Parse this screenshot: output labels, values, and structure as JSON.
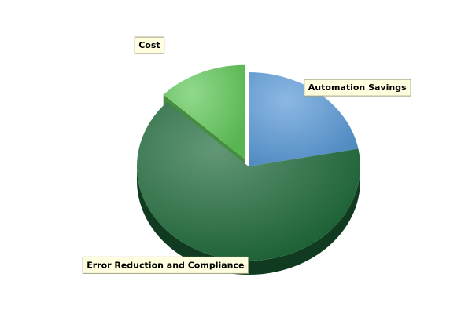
{
  "chart_data": {
    "type": "pie",
    "style": "3d",
    "title": "",
    "slices": [
      {
        "label": "Automation Savings",
        "value": 22,
        "color": "#5a9ad8",
        "exploded": false
      },
      {
        "label": "Error Reduction and Compliance",
        "value": 65,
        "color": "#1f6b3b",
        "exploded": false
      },
      {
        "label": "Cost",
        "value": 13,
        "color": "#62c95a",
        "exploded": true
      }
    ],
    "legend": "none",
    "label_style": {
      "background": "#ffffe0",
      "border": "#a0a080"
    }
  }
}
